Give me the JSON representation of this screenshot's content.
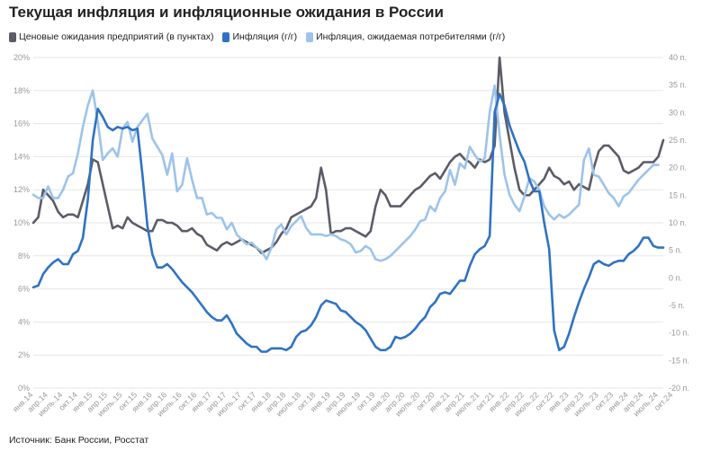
{
  "title": "Текущая инфляция и инфляционные ожидания в России",
  "source": "Источник: Банк России, Росстат",
  "legend": [
    {
      "label": "Ценовые ожидания предприятий (в пунктах)",
      "color": "#5c5c68"
    },
    {
      "label": "Инфляция (г/г)",
      "color": "#2f72c4"
    },
    {
      "label": "Инфляция, ожидаемая потребителями (г/г)",
      "color": "#9dc3ea"
    }
  ],
  "chart_data": {
    "type": "line",
    "title": "Текущая инфляция и инфляционные ожидания в России",
    "xlabel": "",
    "ylabel": "",
    "x_ticks": [
      "янв.14",
      "апр.14",
      "июль.14",
      "окт.14",
      "янв.15",
      "апр.15",
      "июль.15",
      "окт.15",
      "янв.16",
      "апр.16",
      "июль.16",
      "окт.16",
      "янв.17",
      "апр.17",
      "июль.17",
      "окт.17",
      "янв.18",
      "апр.18",
      "июль.18",
      "окт.18",
      "янв.19",
      "апр.19",
      "июль.19",
      "окт.19",
      "янв.20",
      "апр.20",
      "июль.20",
      "окт.20",
      "янв.21",
      "апр.21",
      "июль.21",
      "окт.21",
      "янв.22",
      "апр.22",
      "июль.22",
      "окт.22",
      "янв.23",
      "апр.23",
      "июль.23",
      "окт.23",
      "янв.24",
      "апр.24",
      "июль.24",
      "окт.24"
    ],
    "y_left": {
      "min": 0,
      "max": 20,
      "step": 2,
      "unit": "%",
      "ticks": [
        "0%",
        "2%",
        "4%",
        "6%",
        "8%",
        "10%",
        "12%",
        "14%",
        "16%",
        "18%",
        "20%"
      ]
    },
    "y_right": {
      "min": -20,
      "max": 40,
      "step": 5,
      "unit": "п.",
      "ticks": [
        "-20 п.",
        "-15 п.",
        "-10 п.",
        "-5 п.",
        "0 п.",
        "5 п.",
        "10 п.",
        "15 п.",
        "20 п.",
        "25 п.",
        "30 п.",
        "35 п.",
        "40 п."
      ]
    },
    "grid": true,
    "legend_position": "top-left",
    "series": [
      {
        "name": "Ценовые ожидания предприятий (в пунктах)",
        "axis": "right",
        "color": "#5c5c68",
        "values": [
          10,
          11,
          16,
          15,
          14,
          12,
          11,
          11.5,
          11.5,
          11,
          14,
          17,
          21.5,
          21,
          17,
          13,
          9,
          9.5,
          9,
          11,
          10,
          9.5,
          9,
          8.5,
          8.5,
          10.5,
          10.5,
          10,
          10,
          9.5,
          8.5,
          8.5,
          9,
          8,
          7.5,
          6,
          5.5,
          5,
          6,
          6.5,
          6,
          6.5,
          7,
          6.5,
          6,
          5.5,
          4.5,
          5,
          5.5,
          6.5,
          8,
          9,
          11,
          11.5,
          12,
          12.5,
          13,
          14.5,
          20,
          16,
          8,
          8.5,
          8.5,
          9,
          9,
          8.5,
          8,
          7.5,
          8.5,
          13,
          16,
          15,
          13,
          13,
          13,
          14,
          15,
          16,
          16.5,
          17.5,
          18.5,
          19,
          18,
          19.5,
          21,
          22,
          22.5,
          21.5,
          21,
          20,
          21.5,
          21,
          21.5,
          24,
          40,
          30,
          25,
          20,
          16,
          15,
          15,
          16,
          17,
          18,
          20,
          18.5,
          18,
          17,
          17.5,
          16,
          17,
          16.5,
          16,
          20,
          23,
          24,
          24,
          23,
          22,
          19.5,
          19,
          19.5,
          20,
          21,
          21,
          21,
          22,
          25
        ]
      },
      {
        "name": "Инфляция (г/г)",
        "unit": "%",
        "axis": "left",
        "color": "#2f72c4",
        "values": [
          6.1,
          6.2,
          6.9,
          7.3,
          7.6,
          7.8,
          7.5,
          7.5,
          8.1,
          8.3,
          9.1,
          11.4,
          15,
          16.9,
          16.4,
          15.8,
          15.6,
          15.8,
          15.7,
          15.8,
          15.6,
          15.7,
          12.9,
          9.8,
          8.1,
          7.3,
          7.3,
          7.5,
          7.2,
          6.8,
          6.4,
          6.1,
          5.8,
          5.4,
          5,
          4.6,
          4.3,
          4.1,
          4.1,
          4.4,
          3.9,
          3.3,
          3,
          2.7,
          2.5,
          2.5,
          2.2,
          2.2,
          2.4,
          2.4,
          2.4,
          2.3,
          2.5,
          3.1,
          3.4,
          3.5,
          3.8,
          4.3,
          5,
          5.3,
          5.2,
          5.1,
          4.7,
          4.6,
          4.3,
          4,
          3.8,
          3.5,
          3,
          2.5,
          2.3,
          2.3,
          2.5,
          3.1,
          3,
          3.1,
          3.3,
          3.6,
          4,
          4.3,
          4.9,
          5.2,
          5.7,
          5.8,
          5.7,
          6.1,
          6.5,
          6.5,
          7.4,
          8.1,
          8.4,
          8.6,
          9.2,
          16.7,
          17.8,
          17.1,
          15.9,
          15.1,
          14.3,
          13.7,
          12.6,
          11.9,
          11.9,
          10,
          8.4,
          3.5,
          2.3,
          2.5,
          3.3,
          4.3,
          5.2,
          6,
          6.7,
          7.5,
          7.7,
          7.5,
          7.4,
          7.6,
          7.7,
          7.7,
          8.1,
          8.3,
          8.6,
          9.1,
          9.1,
          8.6,
          8.5,
          8.5
        ]
      },
      {
        "name": "Инфляция, ожидаемая потребителями (г/г)",
        "unit": "%",
        "axis": "left",
        "color": "#9dc3ea",
        "values": [
          11.7,
          11.5,
          11.5,
          12.2,
          11.5,
          11.5,
          12,
          12.8,
          13,
          14.2,
          15.8,
          17.1,
          18,
          16.1,
          13.8,
          14.2,
          14.5,
          14,
          15.7,
          16.1,
          14.9,
          15.8,
          16.2,
          16.6,
          15.1,
          14.6,
          14.1,
          12.9,
          14.2,
          11.9,
          12.3,
          13.9,
          12.6,
          11.5,
          11.5,
          10.5,
          10.6,
          10.3,
          10.3,
          9.6,
          10,
          9.3,
          9,
          8.7,
          8.8,
          8.5,
          8.3,
          7.8,
          8.5,
          9.6,
          9.9,
          9.3,
          9.8,
          10.1,
          10.4,
          9.7,
          9.3,
          9.3,
          9.3,
          9.2,
          9.3,
          9.2,
          9,
          8.9,
          8.7,
          8.2,
          8.3,
          8.6,
          8.4,
          7.8,
          7.7,
          7.8,
          8,
          8.3,
          8.6,
          8.9,
          9.2,
          9.6,
          10.1,
          10.2,
          11,
          10.7,
          11.5,
          11.9,
          13.2,
          12.3,
          13.6,
          13.3,
          14.6,
          14.1,
          13.7,
          13.9,
          16.7,
          18.3,
          15.3,
          12.9,
          11.7,
          11.1,
          10.7,
          11.6,
          12.7,
          12.5,
          12,
          11,
          10.5,
          10.2,
          10.5,
          10.3,
          10.5,
          10.8,
          11.1,
          13.8,
          14.5,
          12.9,
          12.8,
          12.3,
          11.8,
          11.5,
          11,
          11.6,
          11.8,
          12.2,
          12.6,
          12.9,
          13.2,
          13.5,
          13.5
        ]
      }
    ]
  }
}
